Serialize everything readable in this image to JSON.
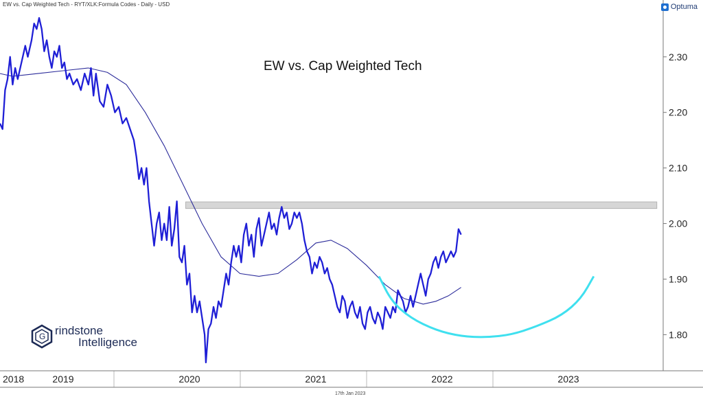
{
  "header": {
    "text": "EW vs. Cap Weighted Tech - RYT/XLK:Formula Codes - Daily - USD"
  },
  "brand": {
    "name": "Optuma"
  },
  "footer": {
    "date": "17th Jan 2023"
  },
  "logo": {
    "line1": "rindstone",
    "line2": "Intelligence",
    "letter": "G"
  },
  "colors": {
    "price": "#1f1fd6",
    "ma": "#2b2b9a",
    "arc": "#3fe0ef",
    "band": "#cfcfcf",
    "grid": "#b8b8b8"
  },
  "chart_data": {
    "type": "line",
    "title": "EW vs. Cap Weighted Tech",
    "xlabel": "",
    "ylabel": "",
    "y_ticks": [
      "1.80",
      "1.90",
      "2.00",
      "2.10",
      "2.20",
      "2.30"
    ],
    "ylim": [
      1.735,
      2.385
    ],
    "xlim": [
      2018.0,
      2023.25
    ],
    "x_tick_labels": [
      "2018",
      "2019",
      "2020",
      "2021",
      "2022",
      "2023"
    ],
    "x_tick_values": [
      2018.0,
      2018.5,
      2019.5,
      2020.5,
      2021.5,
      2022.5
    ],
    "resistance_band": {
      "low": 2.027,
      "high": 2.039,
      "x_start": 2019.47,
      "x_end": 2023.2
    },
    "rounding_bottom_arc": [
      [
        2021.0,
        1.905
      ],
      [
        2021.1,
        1.86
      ],
      [
        2021.25,
        1.83
      ],
      [
        2021.45,
        1.808
      ],
      [
        2021.65,
        1.797
      ],
      [
        2021.85,
        1.795
      ],
      [
        2022.05,
        1.8
      ],
      [
        2022.25,
        1.815
      ],
      [
        2022.45,
        1.835
      ],
      [
        2022.6,
        1.865
      ],
      [
        2022.7,
        1.905
      ]
    ],
    "series": [
      {
        "name": "",
        "values": [
          [
            2018.0,
            2.18
          ],
          [
            2018.02,
            2.17
          ],
          [
            2018.04,
            2.24
          ],
          [
            2018.06,
            2.26
          ],
          [
            2018.08,
            2.3
          ],
          [
            2018.1,
            2.25
          ],
          [
            2018.12,
            2.28
          ],
          [
            2018.14,
            2.26
          ],
          [
            2018.17,
            2.29
          ],
          [
            2018.2,
            2.32
          ],
          [
            2018.22,
            2.3
          ],
          [
            2018.25,
            2.33
          ],
          [
            2018.27,
            2.36
          ],
          [
            2018.29,
            2.35
          ],
          [
            2018.31,
            2.37
          ],
          [
            2018.33,
            2.35
          ],
          [
            2018.35,
            2.31
          ],
          [
            2018.37,
            2.33
          ],
          [
            2018.39,
            2.3
          ],
          [
            2018.41,
            2.28
          ],
          [
            2018.43,
            2.31
          ],
          [
            2018.45,
            2.3
          ],
          [
            2018.47,
            2.32
          ],
          [
            2018.49,
            2.28
          ],
          [
            2018.51,
            2.29
          ],
          [
            2018.53,
            2.26
          ],
          [
            2018.55,
            2.27
          ],
          [
            2018.58,
            2.25
          ],
          [
            2018.61,
            2.26
          ],
          [
            2018.64,
            2.24
          ],
          [
            2018.67,
            2.27
          ],
          [
            2018.7,
            2.25
          ],
          [
            2018.72,
            2.28
          ],
          [
            2018.74,
            2.23
          ],
          [
            2018.76,
            2.27
          ],
          [
            2018.79,
            2.22
          ],
          [
            2018.82,
            2.21
          ],
          [
            2018.85,
            2.25
          ],
          [
            2018.88,
            2.23
          ],
          [
            2018.91,
            2.2
          ],
          [
            2018.94,
            2.21
          ],
          [
            2018.97,
            2.18
          ],
          [
            2019.0,
            2.19
          ],
          [
            2019.03,
            2.17
          ],
          [
            2019.06,
            2.15
          ],
          [
            2019.08,
            2.12
          ],
          [
            2019.1,
            2.08
          ],
          [
            2019.12,
            2.1
          ],
          [
            2019.14,
            2.07
          ],
          [
            2019.16,
            2.1
          ],
          [
            2019.18,
            2.04
          ],
          [
            2019.2,
            2.0
          ],
          [
            2019.22,
            1.96
          ],
          [
            2019.24,
            2.0
          ],
          [
            2019.26,
            2.02
          ],
          [
            2019.28,
            1.97
          ],
          [
            2019.3,
            2.0
          ],
          [
            2019.32,
            1.97
          ],
          [
            2019.34,
            2.03
          ],
          [
            2019.36,
            1.96
          ],
          [
            2019.38,
            1.99
          ],
          [
            2019.4,
            2.04
          ],
          [
            2019.42,
            1.94
          ],
          [
            2019.44,
            1.93
          ],
          [
            2019.46,
            1.96
          ],
          [
            2019.48,
            1.89
          ],
          [
            2019.5,
            1.91
          ],
          [
            2019.52,
            1.84
          ],
          [
            2019.54,
            1.87
          ],
          [
            2019.56,
            1.84
          ],
          [
            2019.58,
            1.86
          ],
          [
            2019.6,
            1.83
          ],
          [
            2019.62,
            1.8
          ],
          [
            2019.63,
            1.75
          ],
          [
            2019.65,
            1.81
          ],
          [
            2019.67,
            1.82
          ],
          [
            2019.69,
            1.85
          ],
          [
            2019.71,
            1.83
          ],
          [
            2019.73,
            1.86
          ],
          [
            2019.75,
            1.85
          ],
          [
            2019.77,
            1.88
          ],
          [
            2019.79,
            1.91
          ],
          [
            2019.81,
            1.89
          ],
          [
            2019.83,
            1.93
          ],
          [
            2019.85,
            1.96
          ],
          [
            2019.87,
            1.94
          ],
          [
            2019.89,
            1.96
          ],
          [
            2019.91,
            1.93
          ],
          [
            2019.93,
            1.98
          ],
          [
            2019.95,
            2.0
          ],
          [
            2019.97,
            1.96
          ],
          [
            2019.99,
            1.98
          ],
          [
            2020.01,
            1.94
          ],
          [
            2020.03,
            1.99
          ],
          [
            2020.05,
            2.01
          ],
          [
            2020.07,
            1.96
          ],
          [
            2020.09,
            1.98
          ],
          [
            2020.11,
            2.0
          ],
          [
            2020.13,
            2.02
          ],
          [
            2020.15,
            1.99
          ],
          [
            2020.17,
            2.0
          ],
          [
            2020.19,
            1.98
          ],
          [
            2020.21,
            2.01
          ],
          [
            2020.23,
            2.03
          ],
          [
            2020.25,
            2.01
          ],
          [
            2020.27,
            2.02
          ],
          [
            2020.29,
            1.99
          ],
          [
            2020.31,
            2.0
          ],
          [
            2020.33,
            2.02
          ],
          [
            2020.35,
            2.01
          ],
          [
            2020.37,
            2.02
          ],
          [
            2020.39,
            2.0
          ],
          [
            2020.41,
            1.97
          ],
          [
            2020.43,
            1.95
          ],
          [
            2020.45,
            1.94
          ],
          [
            2020.47,
            1.91
          ],
          [
            2020.49,
            1.93
          ],
          [
            2020.51,
            1.92
          ],
          [
            2020.53,
            1.94
          ],
          [
            2020.55,
            1.93
          ],
          [
            2020.57,
            1.91
          ],
          [
            2020.59,
            1.92
          ],
          [
            2020.61,
            1.9
          ],
          [
            2020.63,
            1.89
          ],
          [
            2020.65,
            1.87
          ],
          [
            2020.67,
            1.85
          ],
          [
            2020.69,
            1.84
          ],
          [
            2020.71,
            1.87
          ],
          [
            2020.73,
            1.86
          ],
          [
            2020.75,
            1.83
          ],
          [
            2020.77,
            1.85
          ],
          [
            2020.79,
            1.86
          ],
          [
            2020.81,
            1.84
          ],
          [
            2020.83,
            1.83
          ],
          [
            2020.85,
            1.85
          ],
          [
            2020.87,
            1.82
          ],
          [
            2020.89,
            1.81
          ],
          [
            2020.91,
            1.84
          ],
          [
            2020.93,
            1.85
          ],
          [
            2020.95,
            1.83
          ],
          [
            2020.97,
            1.82
          ],
          [
            2020.99,
            1.84
          ],
          [
            2021.01,
            1.83
          ],
          [
            2021.03,
            1.81
          ],
          [
            2021.05,
            1.85
          ],
          [
            2021.07,
            1.84
          ],
          [
            2021.09,
            1.83
          ],
          [
            2021.11,
            1.85
          ],
          [
            2021.13,
            1.84
          ],
          [
            2021.15,
            1.88
          ],
          [
            2021.17,
            1.87
          ],
          [
            2021.19,
            1.86
          ],
          [
            2021.21,
            1.84
          ],
          [
            2021.23,
            1.85
          ],
          [
            2021.25,
            1.87
          ],
          [
            2021.27,
            1.85
          ],
          [
            2021.29,
            1.87
          ],
          [
            2021.31,
            1.89
          ],
          [
            2021.33,
            1.91
          ],
          [
            2021.35,
            1.89
          ],
          [
            2021.37,
            1.87
          ],
          [
            2021.39,
            1.9
          ],
          [
            2021.41,
            1.91
          ],
          [
            2021.43,
            1.93
          ],
          [
            2021.45,
            1.94
          ],
          [
            2021.47,
            1.92
          ],
          [
            2021.49,
            1.94
          ],
          [
            2021.51,
            1.95
          ],
          [
            2021.53,
            1.93
          ],
          [
            2021.55,
            1.94
          ],
          [
            2021.57,
            1.95
          ],
          [
            2021.59,
            1.94
          ],
          [
            2021.61,
            1.95
          ],
          [
            2021.63,
            1.99
          ],
          [
            2021.65,
            1.98
          ]
        ]
      },
      {
        "name": "",
        "values": [
          [
            2018.0,
            2.27
          ],
          [
            2018.1,
            2.265
          ],
          [
            2018.3,
            2.27
          ],
          [
            2018.5,
            2.275
          ],
          [
            2018.7,
            2.28
          ],
          [
            2018.85,
            2.272
          ],
          [
            2019.0,
            2.25
          ],
          [
            2019.15,
            2.2
          ],
          [
            2019.3,
            2.14
          ],
          [
            2019.45,
            2.07
          ],
          [
            2019.6,
            2.0
          ],
          [
            2019.75,
            1.94
          ],
          [
            2019.9,
            1.91
          ],
          [
            2020.05,
            1.905
          ],
          [
            2020.2,
            1.91
          ],
          [
            2020.35,
            1.935
          ],
          [
            2020.5,
            1.965
          ],
          [
            2020.62,
            1.97
          ],
          [
            2020.75,
            1.955
          ],
          [
            2020.9,
            1.925
          ],
          [
            2021.05,
            1.89
          ],
          [
            2021.2,
            1.865
          ],
          [
            2021.35,
            1.855
          ],
          [
            2021.45,
            1.86
          ],
          [
            2021.55,
            1.87
          ],
          [
            2021.65,
            1.885
          ]
        ]
      }
    ],
    "resistance_label": "",
    "grid": "vertical"
  }
}
